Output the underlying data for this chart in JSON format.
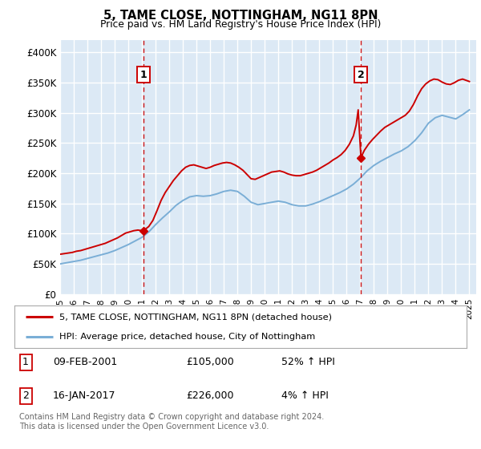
{
  "title": "5, TAME CLOSE, NOTTINGHAM, NG11 8PN",
  "subtitle": "Price paid vs. HM Land Registry's House Price Index (HPI)",
  "ytick_values": [
    0,
    50000,
    100000,
    150000,
    200000,
    250000,
    300000,
    350000,
    400000
  ],
  "ylim": [
    0,
    420000
  ],
  "xlim_start": 1995.0,
  "xlim_end": 2025.5,
  "xticks": [
    1995,
    1996,
    1997,
    1998,
    1999,
    2000,
    2001,
    2002,
    2003,
    2004,
    2005,
    2006,
    2007,
    2008,
    2009,
    2010,
    2011,
    2012,
    2013,
    2014,
    2015,
    2016,
    2017,
    2018,
    2019,
    2020,
    2021,
    2022,
    2023,
    2024,
    2025
  ],
  "bg_color": "#dce9f5",
  "grid_color": "#ffffff",
  "red_line_color": "#cc0000",
  "blue_line_color": "#7aaed6",
  "marker1_x": 2001.12,
  "marker1_y": 105000,
  "marker2_x": 2017.05,
  "marker2_y": 226000,
  "legend_red": "5, TAME CLOSE, NOTTINGHAM, NG11 8PN (detached house)",
  "legend_blue": "HPI: Average price, detached house, City of Nottingham",
  "ann1_label": "1",
  "ann1_date": "09-FEB-2001",
  "ann1_price": "£105,000",
  "ann1_hpi": "52% ↑ HPI",
  "ann2_label": "2",
  "ann2_date": "16-JAN-2017",
  "ann2_price": "£226,000",
  "ann2_hpi": "4% ↑ HPI",
  "footer": "Contains HM Land Registry data © Crown copyright and database right 2024.\nThis data is licensed under the Open Government Licence v3.0."
}
